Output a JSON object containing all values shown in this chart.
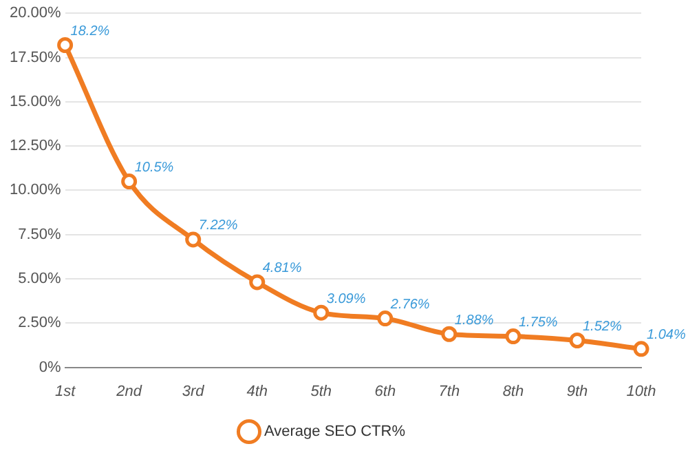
{
  "chart_data": {
    "type": "line",
    "categories": [
      "1st",
      "2nd",
      "3rd",
      "4th",
      "5th",
      "6th",
      "7th",
      "8th",
      "9th",
      "10th"
    ],
    "series": [
      {
        "name": "Average SEO CTR%",
        "color": "#f07c22",
        "values": [
          18.2,
          10.5,
          7.22,
          4.81,
          3.09,
          2.76,
          1.88,
          1.75,
          1.52,
          1.04
        ],
        "value_labels": [
          "18.2%",
          "10.5%",
          "7.22%",
          "4.81%",
          "3.09%",
          "2.76%",
          "1.88%",
          "1.75%",
          "1.52%",
          "1.04%"
        ]
      }
    ],
    "ylim": [
      0,
      20
    ],
    "yticks": [
      {
        "value": 0,
        "label": "0%"
      },
      {
        "value": 2.5,
        "label": "2.50%"
      },
      {
        "value": 5,
        "label": "5.00%"
      },
      {
        "value": 7.5,
        "label": "7.50%"
      },
      {
        "value": 10,
        "label": "10.00%"
      },
      {
        "value": 12.5,
        "label": "12.50%"
      },
      {
        "value": 15,
        "label": "15.00%"
      },
      {
        "value": 17.5,
        "label": "17.50%"
      },
      {
        "value": 20,
        "label": "20.00%"
      }
    ],
    "grid": "y",
    "legend": "bottom",
    "marker": "circle",
    "line_style": "solid"
  }
}
